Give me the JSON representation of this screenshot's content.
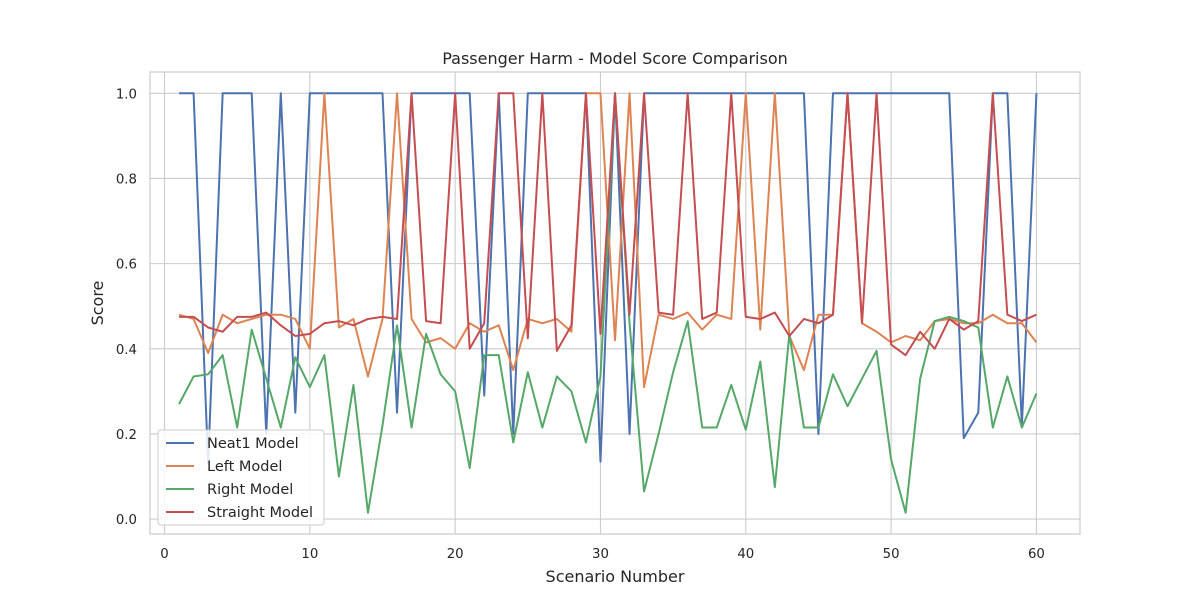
{
  "chart_data": {
    "type": "line",
    "title": "Passenger Harm - Model Score Comparison",
    "xlabel": "Scenario Number",
    "ylabel": "Score",
    "xlim": [
      -1,
      63
    ],
    "ylim": [
      -0.035,
      1.05
    ],
    "xticks": [
      0,
      10,
      20,
      30,
      40,
      50,
      60
    ],
    "yticks": [
      0.0,
      0.2,
      0.4,
      0.6,
      0.8,
      1.0
    ],
    "grid": true,
    "legend_position": "lower-left",
    "x": [
      1,
      2,
      3,
      4,
      5,
      6,
      7,
      8,
      9,
      10,
      11,
      12,
      13,
      14,
      15,
      16,
      17,
      18,
      19,
      20,
      21,
      22,
      23,
      24,
      25,
      26,
      27,
      28,
      29,
      30,
      31,
      32,
      33,
      34,
      35,
      36,
      37,
      38,
      39,
      40,
      41,
      42,
      43,
      44,
      45,
      46,
      47,
      48,
      49,
      50,
      51,
      52,
      53,
      54,
      55,
      56,
      57,
      58,
      59,
      60
    ],
    "series": [
      {
        "name": "Neat1 Model",
        "color": "#4c72b0",
        "values": [
          1.0,
          1.0,
          0.13,
          1.0,
          1.0,
          1.0,
          0.2,
          1.0,
          0.25,
          1.0,
          1.0,
          1.0,
          1.0,
          1.0,
          1.0,
          0.25,
          1.0,
          1.0,
          1.0,
          1.0,
          1.0,
          0.29,
          1.0,
          0.2,
          1.0,
          1.0,
          1.0,
          1.0,
          1.0,
          0.135,
          1.0,
          0.2,
          1.0,
          1.0,
          1.0,
          1.0,
          1.0,
          1.0,
          1.0,
          1.0,
          1.0,
          1.0,
          1.0,
          1.0,
          0.2,
          1.0,
          1.0,
          1.0,
          1.0,
          1.0,
          1.0,
          1.0,
          1.0,
          1.0,
          0.19,
          0.25,
          1.0,
          1.0,
          0.22,
          1.0
        ]
      },
      {
        "name": "Left Model",
        "color": "#dd8452",
        "values": [
          0.48,
          0.47,
          0.39,
          0.48,
          0.46,
          0.47,
          0.48,
          0.48,
          0.47,
          0.4,
          1.0,
          0.45,
          0.47,
          0.335,
          0.47,
          1.0,
          0.47,
          0.415,
          0.425,
          0.4,
          0.46,
          0.44,
          0.455,
          0.35,
          0.47,
          0.46,
          0.47,
          0.44,
          1.0,
          1.0,
          0.42,
          1.0,
          0.31,
          0.48,
          0.47,
          0.485,
          0.445,
          0.48,
          0.47,
          1.0,
          0.445,
          1.0,
          0.43,
          0.35,
          0.48,
          0.48,
          1.0,
          0.46,
          0.44,
          0.415,
          0.43,
          0.42,
          0.465,
          0.47,
          0.46,
          0.46,
          0.48,
          0.46,
          0.46,
          0.415
        ]
      },
      {
        "name": "Right Model",
        "color": "#55a868",
        "values": [
          0.27,
          0.335,
          0.34,
          0.385,
          0.215,
          0.445,
          0.33,
          0.215,
          0.38,
          0.31,
          0.385,
          0.1,
          0.315,
          0.015,
          0.22,
          0.455,
          0.215,
          0.435,
          0.34,
          0.3,
          0.12,
          0.385,
          0.385,
          0.18,
          0.345,
          0.215,
          0.335,
          0.3,
          0.18,
          0.335,
          1.0,
          0.46,
          0.065,
          0.2,
          0.345,
          0.465,
          0.215,
          0.215,
          0.315,
          0.21,
          0.37,
          0.075,
          0.435,
          0.215,
          0.215,
          0.34,
          0.265,
          0.33,
          0.395,
          0.14,
          0.015,
          0.33,
          0.465,
          0.475,
          0.465,
          0.45,
          0.215,
          0.335,
          0.215,
          0.295
        ]
      },
      {
        "name": "Straight Model",
        "color": "#c44e52",
        "values": [
          0.475,
          0.475,
          0.45,
          0.44,
          0.475,
          0.475,
          0.485,
          0.455,
          0.43,
          0.435,
          0.46,
          0.465,
          0.455,
          0.47,
          0.475,
          0.47,
          1.0,
          0.465,
          0.46,
          1.0,
          0.4,
          0.46,
          1.0,
          1.0,
          0.425,
          1.0,
          0.395,
          0.455,
          1.0,
          0.435,
          1.0,
          0.48,
          1.0,
          0.485,
          0.48,
          1.0,
          0.47,
          0.485,
          1.0,
          0.475,
          0.47,
          0.485,
          0.43,
          0.47,
          0.46,
          0.48,
          1.0,
          0.46,
          1.0,
          0.41,
          0.385,
          0.44,
          0.4,
          0.47,
          0.445,
          0.465,
          1.0,
          0.48,
          0.465,
          0.48
        ]
      }
    ]
  }
}
